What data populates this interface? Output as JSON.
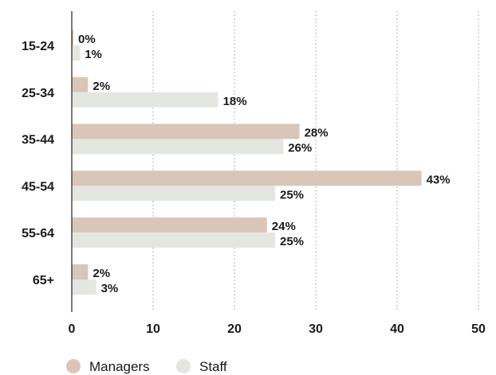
{
  "chart_data": {
    "type": "bar",
    "orientation": "horizontal",
    "categories": [
      "15-24",
      "25-34",
      "35-44",
      "45-54",
      "55-64",
      "65+"
    ],
    "series": [
      {
        "name": "Managers",
        "values": [
          0,
          2,
          28,
          43,
          24,
          2
        ],
        "labels": [
          "0%",
          "2%",
          "28%",
          "43%",
          "24%",
          "2%"
        ],
        "color": "#d9c6b9"
      },
      {
        "name": "Staff",
        "values": [
          1,
          18,
          26,
          25,
          25,
          3
        ],
        "labels": [
          "1%",
          "18%",
          "26%",
          "25%",
          "25%",
          "3%"
        ],
        "color": "#e4e6e1"
      }
    ],
    "xlim": [
      0,
      50
    ],
    "xticks": [
      0,
      10,
      20,
      30,
      40,
      50
    ],
    "xticklabels": [
      "0",
      "10",
      "20",
      "30",
      "40",
      "50"
    ],
    "grid": "vertical-dotted",
    "legend_position": "bottom-left",
    "title": "",
    "xlabel": "",
    "ylabel": ""
  }
}
